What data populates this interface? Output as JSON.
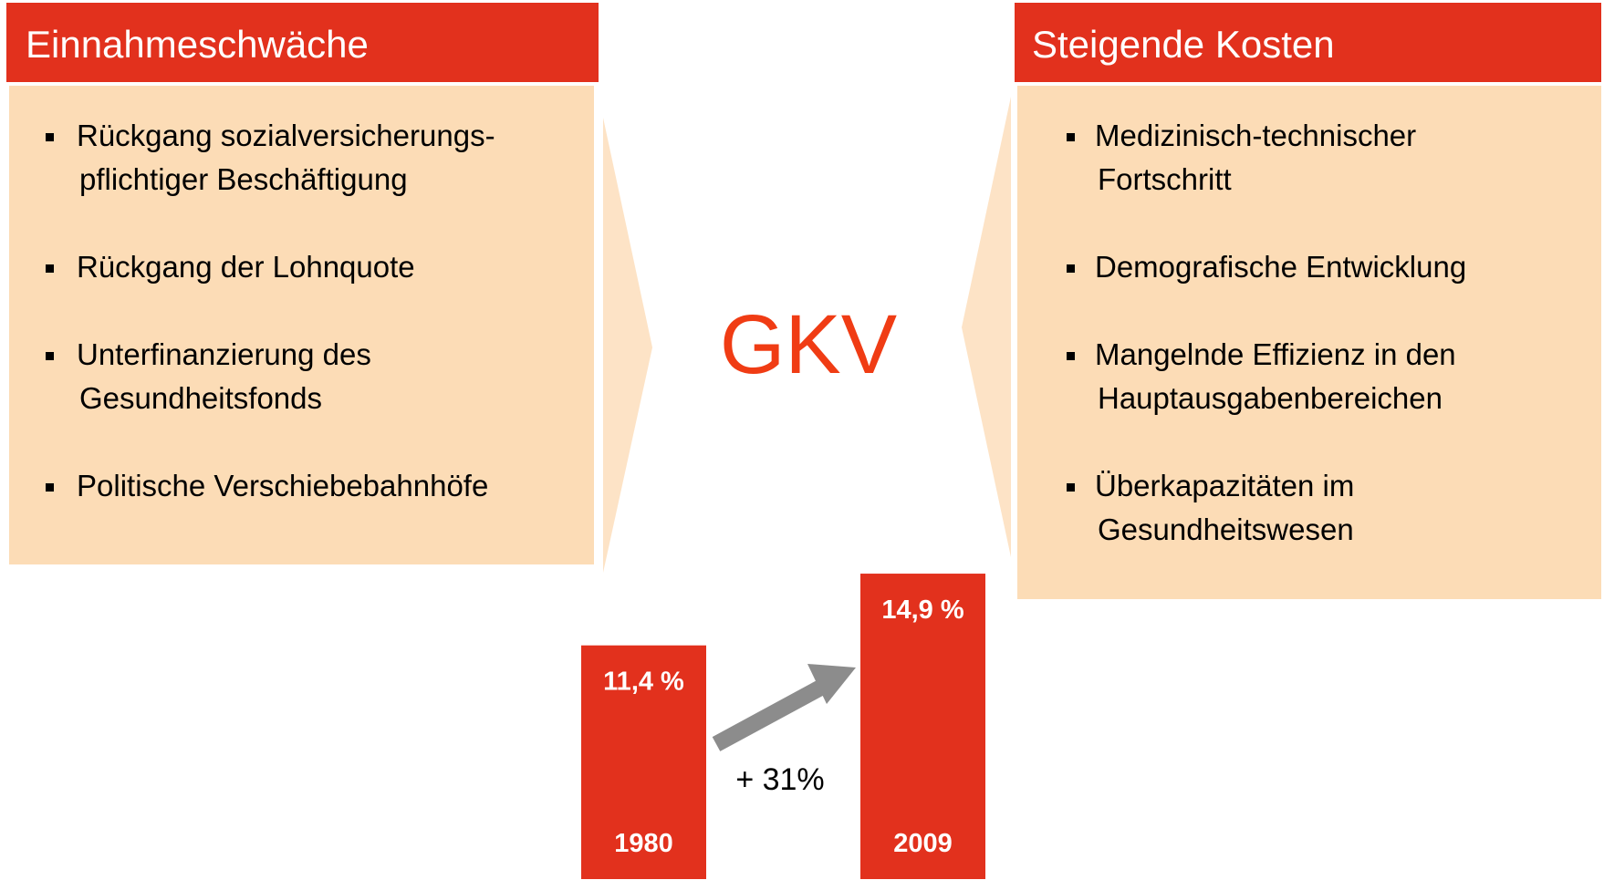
{
  "left": {
    "title": "Einnahmeschwäche",
    "items": [
      [
        "Rückgang sozialversicherungs-",
        "pflichtiger Beschäftigung"
      ],
      [
        "Rückgang der Lohnquote"
      ],
      [
        "Unterfinanzierung des",
        "Gesundheitsfonds"
      ],
      [
        "Politische Verschiebebahnhöfe"
      ]
    ]
  },
  "right": {
    "title": "Steigende Kosten",
    "items": [
      [
        "Medizinisch-technischer",
        "Fortschritt"
      ],
      [
        "Demografische Entwicklung"
      ],
      [
        "Mangelnde Effizienz in den",
        "Hauptausgabenbereichen"
      ],
      [
        "Überkapazitäten im",
        "Gesundheitswesen"
      ]
    ]
  },
  "center": "GKV",
  "chart_data": {
    "type": "bar",
    "categories": [
      "1980",
      "2009"
    ],
    "values": [
      11.4,
      14.9
    ],
    "value_labels": [
      "11,4 %",
      "14,9 %"
    ],
    "color": "#e2311d",
    "annotation": "+ 31%"
  }
}
